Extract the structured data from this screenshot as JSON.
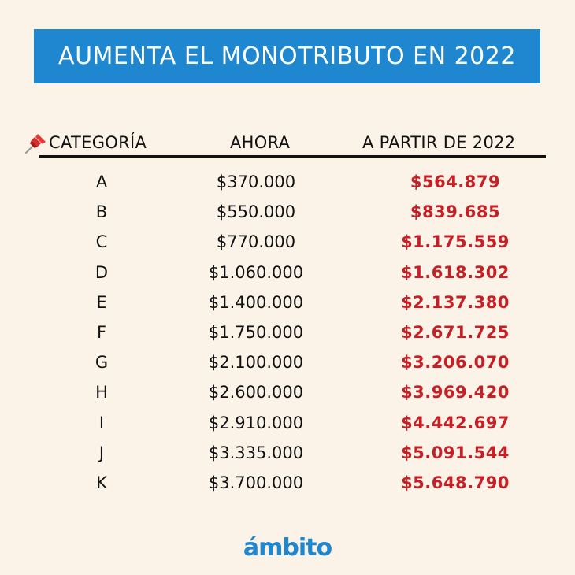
{
  "title": "AUMENTA EL MONOTRIBUTO EN 2022",
  "table": {
    "headers": {
      "categoria": "CATEGORÍA",
      "ahora": "AHORA",
      "nuevo": "A PARTIR DE 2022"
    },
    "rows": [
      {
        "categoria": "A",
        "ahora": "$370.000",
        "nuevo": "$564.879"
      },
      {
        "categoria": "B",
        "ahora": "$550.000",
        "nuevo": "$839.685"
      },
      {
        "categoria": "C",
        "ahora": "$770.000",
        "nuevo": "$1.175.559"
      },
      {
        "categoria": "D",
        "ahora": "$1.060.000",
        "nuevo": "$1.618.302"
      },
      {
        "categoria": "E",
        "ahora": "$1.400.000",
        "nuevo": "$2.137.380"
      },
      {
        "categoria": "F",
        "ahora": "$1.750.000",
        "nuevo": "$2.671.725"
      },
      {
        "categoria": "G",
        "ahora": "$2.100.000",
        "nuevo": "$3.206.070"
      },
      {
        "categoria": "H",
        "ahora": "$2.600.000",
        "nuevo": "$3.969.420"
      },
      {
        "categoria": "I",
        "ahora": "$2.910.000",
        "nuevo": "$4.442.697"
      },
      {
        "categoria": "J",
        "ahora": "$3.335.000",
        "nuevo": "$5.091.544"
      },
      {
        "categoria": "K",
        "ahora": "$3.700.000",
        "nuevo": "$5.648.790"
      }
    ]
  },
  "logo": "ámbito",
  "colors": {
    "banner": "#1f87d0",
    "background": "#fbf3e7",
    "new_values": "#c62026",
    "text": "#111111"
  },
  "icons": {
    "header_pin": "pushpin-icon"
  }
}
